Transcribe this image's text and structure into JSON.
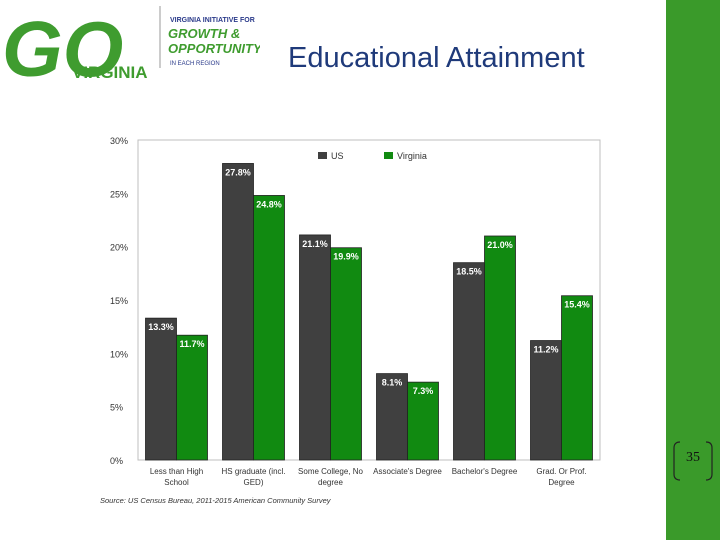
{
  "colors": {
    "right_bar": "#3a9a2a",
    "logo_green": "#3f9c2f",
    "title_blue": "#1f3a7a",
    "us": "#404040",
    "virginia": "#118a11",
    "plot_border": "#bfbfbf"
  },
  "logo": {
    "initiative": "VIRGINIA INITIATIVE FOR",
    "line1": "GROWTH &",
    "line2": "OPPORTUNITY",
    "region": "IN EACH REGION",
    "big_text": "GO",
    "state": "VIRGINIA"
  },
  "slide": {
    "title": "Educational Attainment",
    "page_number": "35"
  },
  "chart_data": {
    "type": "bar",
    "categories": [
      [
        "Less than High",
        "School"
      ],
      [
        "HS graduate (incl.",
        "GED)"
      ],
      [
        "Some College, No",
        "degree"
      ],
      [
        "Associate's Degree"
      ],
      [
        "Bachelor's Degree"
      ],
      [
        "Grad. Or Prof.",
        "Degree"
      ]
    ],
    "series": [
      {
        "name": "US",
        "values": [
          13.3,
          27.8,
          21.1,
          8.1,
          18.5,
          11.2
        ],
        "labels": [
          "13.3%",
          "27.8%",
          "21.1%",
          "8.1%",
          "18.5%",
          "11.2%"
        ]
      },
      {
        "name": "Virginia",
        "values": [
          11.7,
          24.8,
          19.9,
          7.3,
          21.0,
          15.4
        ],
        "labels": [
          "11.7%",
          "24.8%",
          "19.9%",
          "7.3%",
          "21.0%",
          "15.4%"
        ]
      }
    ],
    "y_ticks": [
      "0%",
      "5%",
      "10%",
      "15%",
      "20%",
      "25%",
      "30%"
    ],
    "ylim": [
      0,
      30
    ],
    "grid": false,
    "legend": "top-center",
    "source": "Source: US Census Bureau, 2011-2015 American Community Survey"
  }
}
